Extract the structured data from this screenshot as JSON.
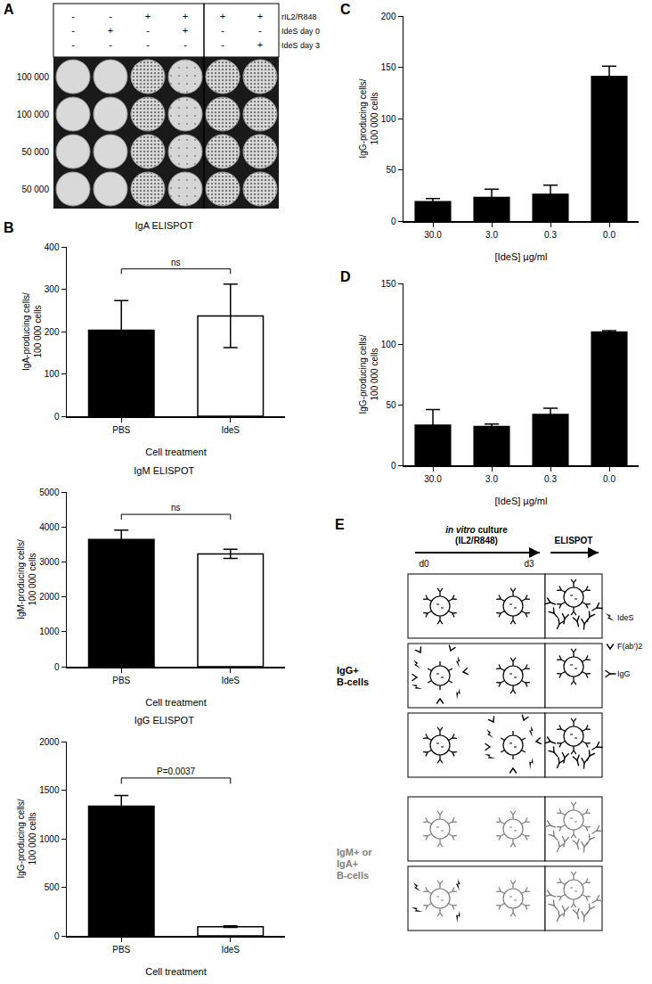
{
  "panel_A": {
    "label": "A",
    "conditions": [
      {
        "name": "rIL2/R848",
        "signs": [
          "-",
          "-",
          "+",
          "+",
          "+",
          "+"
        ]
      },
      {
        "name": "IdeS day 0",
        "signs": [
          "-",
          "+",
          "-",
          "+",
          "-",
          "-"
        ]
      },
      {
        "name": "IdeS day 3",
        "signs": [
          "-",
          "-",
          "-",
          "-",
          "-",
          "+"
        ]
      }
    ],
    "cell_numbers": [
      "100 000",
      "100 000",
      "50 000",
      "50 000"
    ]
  },
  "chart_data": [
    {
      "panel_label": "B",
      "type": "bar",
      "title": "IgA ELISPOT",
      "categories": [
        "PBS",
        "IdeS"
      ],
      "values": [
        203,
        237
      ],
      "errors": [
        70,
        75
      ],
      "colors": [
        "#000000",
        "#ffffff"
      ],
      "ylim": [
        0,
        400
      ],
      "yticks": [
        0,
        100,
        200,
        300,
        400
      ],
      "y_label": [
        "IgA-producing cells/",
        "100 000 cells"
      ],
      "x_label": "Cell treatment",
      "significance": {
        "text": "ns",
        "between": [
          "PBS",
          "IdeS"
        ]
      }
    },
    {
      "type": "bar",
      "title": "IgM ELISPOT",
      "categories": [
        "PBS",
        "IdeS"
      ],
      "values": [
        3640,
        3230
      ],
      "errors": [
        270,
        130
      ],
      "colors": [
        "#000000",
        "#ffffff"
      ],
      "ylim": [
        0,
        5000
      ],
      "yticks": [
        0,
        1000,
        2000,
        3000,
        4000,
        5000
      ],
      "y_label": [
        "IgM-producing cells/",
        "100 000 cells"
      ],
      "x_label": "Cell treatment",
      "significance": {
        "text": "ns",
        "between": [
          "PBS",
          "IdeS"
        ]
      }
    },
    {
      "type": "bar",
      "title": "IgG ELISPOT",
      "categories": [
        "PBS",
        "IdeS"
      ],
      "values": [
        1335,
        95
      ],
      "errors": [
        110,
        8
      ],
      "colors": [
        "#000000",
        "#ffffff"
      ],
      "ylim": [
        0,
        2000
      ],
      "yticks": [
        0,
        500,
        1000,
        1500,
        2000
      ],
      "y_label": [
        "IgG-producing cells/",
        "100 000 cells"
      ],
      "x_label": "Cell treatment",
      "significance": {
        "text": "P=0.0037",
        "between": [
          "PBS",
          "IdeS"
        ]
      }
    },
    {
      "panel_label": "C",
      "type": "bar",
      "categories": [
        "30.0",
        "3.0",
        "0.3",
        "0.0"
      ],
      "values": [
        19,
        23,
        26,
        141
      ],
      "errors": [
        3,
        8,
        9,
        10
      ],
      "color": "#000000",
      "ylim": [
        0,
        200
      ],
      "yticks": [
        0,
        50,
        100,
        150,
        200
      ],
      "y_label": [
        "IgG-producing cells/",
        "100 000 cells"
      ],
      "x_label": "[IdeS] µg/ml"
    },
    {
      "panel_label": "D",
      "type": "bar",
      "categories": [
        "30.0",
        "3.0",
        "0.3",
        "0.0"
      ],
      "values": [
        33,
        32,
        42,
        110
      ],
      "errors": [
        13,
        2,
        5,
        1
      ],
      "color": "#000000",
      "ylim": [
        0,
        150
      ],
      "yticks": [
        0,
        50,
        100,
        150
      ],
      "y_label": [
        "IgG-producing cells/",
        "100 000 cells"
      ],
      "x_label": "[IdeS] µg/ml"
    }
  ],
  "panel_E": {
    "label": "E",
    "culture": [
      "in vitro",
      " culture"
    ],
    "culture_condition": "(IL2/R848)",
    "assay": "ELISPOT",
    "days": [
      "d0",
      "d3"
    ],
    "groups": [
      {
        "name": [
          "IgG+",
          "B-cells"
        ],
        "color": "#000000",
        "cleavable": true,
        "rows": [
          {
            "ides": null,
            "secretes": true
          },
          {
            "ides": "d0",
            "secretes": false
          },
          {
            "ides": "d3",
            "secretes": true
          }
        ]
      },
      {
        "name": [
          "IgM+ or",
          "IgA+",
          "B-cells"
        ],
        "color": "#808080",
        "cleavable": false,
        "rows": [
          {
            "ides": null,
            "secretes": true
          },
          {
            "ides": "d0",
            "secretes": true
          }
        ]
      }
    ],
    "legend": [
      "IdeS",
      "F(ab')2",
      "IgG"
    ]
  }
}
